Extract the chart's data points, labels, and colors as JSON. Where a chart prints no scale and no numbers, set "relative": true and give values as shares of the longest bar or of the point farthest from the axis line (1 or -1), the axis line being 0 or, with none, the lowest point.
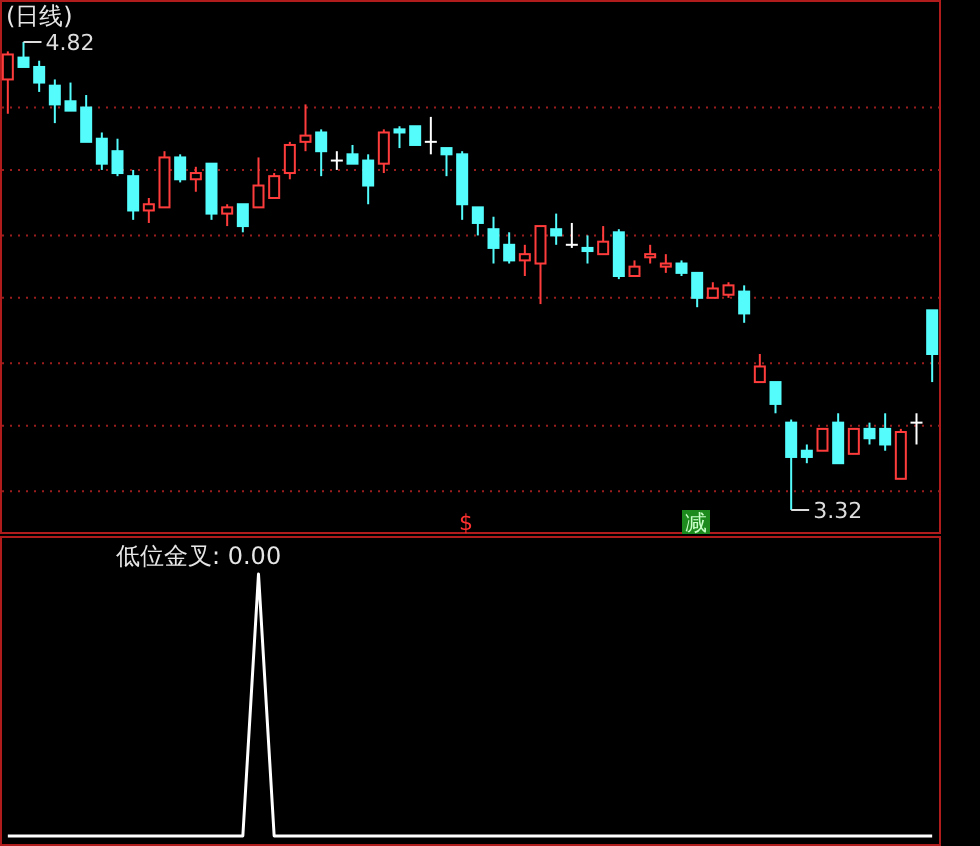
{
  "chart_data": [
    {
      "type": "candlestick",
      "title": "(日线)",
      "categories": [
        null,
        null,
        null,
        null,
        null,
        null,
        null,
        null,
        null,
        null,
        null,
        null,
        null,
        null,
        null,
        null,
        null,
        null,
        null,
        null,
        null,
        null,
        null,
        null,
        null,
        null,
        null,
        null,
        null,
        null,
        null,
        null,
        null,
        null,
        null,
        null,
        null,
        null,
        null,
        null,
        null,
        null,
        null,
        null,
        null,
        null,
        null,
        null,
        null,
        null,
        null,
        null,
        null,
        null,
        null,
        null,
        null,
        null,
        null,
        null
      ],
      "ohlc": [
        [
          4.7,
          4.79,
          4.59,
          4.78
        ],
        [
          4.77,
          4.82,
          4.74,
          4.74
        ],
        [
          4.74,
          4.76,
          4.66,
          4.69
        ],
        [
          4.68,
          4.7,
          4.56,
          4.62
        ],
        [
          4.63,
          4.69,
          4.6,
          4.6
        ],
        [
          4.61,
          4.65,
          4.5,
          4.5
        ],
        [
          4.51,
          4.53,
          4.41,
          4.43
        ],
        [
          4.47,
          4.51,
          4.39,
          4.4
        ],
        [
          4.39,
          4.41,
          4.25,
          4.28
        ],
        [
          4.28,
          4.32,
          4.24,
          4.3
        ],
        [
          4.29,
          4.47,
          4.29,
          4.45
        ],
        [
          4.45,
          4.46,
          4.37,
          4.38
        ],
        [
          4.38,
          4.42,
          4.34,
          4.4
        ],
        [
          4.43,
          4.43,
          4.25,
          4.27
        ],
        [
          4.27,
          4.3,
          4.23,
          4.29
        ],
        [
          4.3,
          4.3,
          4.21,
          4.23
        ],
        [
          4.29,
          4.45,
          4.29,
          4.36
        ],
        [
          4.32,
          4.4,
          4.32,
          4.39
        ],
        [
          4.4,
          4.5,
          4.38,
          4.49
        ],
        [
          4.5,
          4.62,
          4.47,
          4.52
        ],
        [
          4.53,
          4.54,
          4.39,
          4.47
        ],
        [
          4.44,
          4.47,
          4.41,
          4.44
        ],
        [
          4.46,
          4.49,
          4.43,
          4.43
        ],
        [
          4.44,
          4.46,
          4.3,
          4.36
        ],
        [
          4.43,
          4.54,
          4.4,
          4.53
        ],
        [
          4.54,
          4.55,
          4.48,
          4.53
        ],
        [
          4.55,
          4.55,
          4.49,
          4.49
        ],
        [
          4.5,
          4.58,
          4.46,
          4.5
        ],
        [
          4.48,
          4.48,
          4.39,
          4.46
        ],
        [
          4.46,
          4.47,
          4.25,
          4.3
        ],
        [
          4.29,
          4.29,
          4.2,
          4.24
        ],
        [
          4.22,
          4.26,
          4.11,
          4.16
        ],
        [
          4.17,
          4.21,
          4.11,
          4.12
        ],
        [
          4.12,
          4.17,
          4.07,
          4.14
        ],
        [
          4.11,
          4.23,
          3.98,
          4.23
        ],
        [
          4.22,
          4.27,
          4.17,
          4.2
        ],
        [
          4.17,
          4.24,
          4.16,
          4.17
        ],
        [
          4.16,
          4.2,
          4.11,
          4.15
        ],
        [
          4.14,
          4.23,
          4.14,
          4.18
        ],
        [
          4.21,
          4.22,
          4.06,
          4.07
        ],
        [
          4.07,
          4.12,
          4.07,
          4.1
        ],
        [
          4.13,
          4.17,
          4.11,
          4.14
        ],
        [
          4.1,
          4.14,
          4.08,
          4.11
        ],
        [
          4.11,
          4.12,
          4.07,
          4.08
        ],
        [
          4.08,
          4.08,
          3.97,
          4.0
        ],
        [
          4.0,
          4.05,
          4.0,
          4.03
        ],
        [
          4.01,
          4.05,
          4.0,
          4.04
        ],
        [
          4.02,
          4.04,
          3.92,
          3.95
        ],
        [
          3.73,
          3.82,
          3.73,
          3.78
        ],
        [
          3.73,
          3.73,
          3.63,
          3.66
        ],
        [
          3.6,
          3.61,
          3.32,
          3.49
        ],
        [
          3.51,
          3.53,
          3.47,
          3.49
        ],
        [
          3.51,
          3.58,
          3.51,
          3.58
        ],
        [
          3.6,
          3.63,
          3.47,
          3.47
        ],
        [
          3.5,
          3.58,
          3.5,
          3.58
        ],
        [
          3.58,
          3.6,
          3.53,
          3.55
        ],
        [
          3.58,
          3.63,
          3.51,
          3.53
        ],
        [
          3.42,
          3.58,
          3.42,
          3.57
        ],
        [
          3.6,
          3.63,
          3.53,
          3.6
        ],
        [
          3.96,
          3.96,
          3.73,
          3.82
        ]
      ],
      "yticks": [
        {
          "value": 4.61,
          "label": null
        },
        {
          "value": 4.41,
          "label": null
        },
        {
          "value": 4.2,
          "label": null
        },
        {
          "value": 4.0,
          "label": null
        },
        {
          "value": 3.79,
          "label": null
        },
        {
          "value": 3.59,
          "label": null
        },
        {
          "value": 3.38,
          "label": null
        }
      ],
      "grid": "y",
      "annotations": [
        "4.82",
        "3.32",
        "$",
        "减"
      ]
    },
    {
      "type": "line",
      "title": "低位金叉: 0.00",
      "categories": [
        null,
        null,
        null,
        null,
        null,
        null,
        null,
        null,
        null,
        null,
        null,
        null,
        null,
        null,
        null,
        null,
        null,
        null,
        null,
        null,
        null,
        null,
        null,
        null,
        null,
        null,
        null,
        null,
        null,
        null,
        null,
        null,
        null,
        null,
        null,
        null,
        null,
        null,
        null,
        null,
        null,
        null,
        null,
        null,
        null,
        null,
        null,
        null,
        null,
        null,
        null,
        null,
        null,
        null,
        null,
        null,
        null,
        null,
        null,
        null
      ],
      "series": [
        {
          "color": "#ffffff",
          "values": [
            0,
            0,
            0,
            0,
            0,
            0,
            0,
            0,
            0,
            0,
            0,
            0,
            0,
            0,
            0,
            0,
            1,
            0,
            0,
            0,
            0,
            0,
            0,
            0,
            0,
            0,
            0,
            0,
            0,
            0,
            0,
            0,
            0,
            0,
            0,
            0,
            0,
            0,
            0,
            0,
            0,
            0,
            0,
            0,
            0,
            0,
            0,
            0,
            0,
            0,
            0,
            0,
            0,
            0,
            0,
            0,
            0,
            0,
            0,
            0
          ]
        }
      ],
      "relative": true
    }
  ]
}
